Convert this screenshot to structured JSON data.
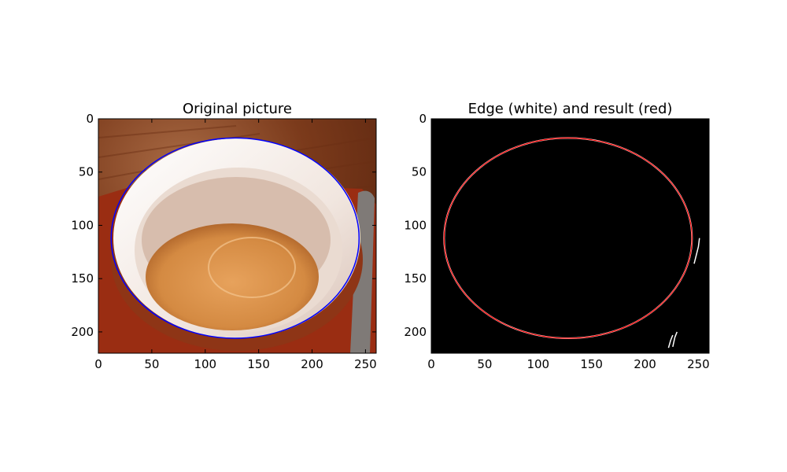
{
  "chart_data": [
    {
      "type": "image",
      "title": "Original picture",
      "xlabel": "",
      "ylabel": "",
      "xlim": [
        0,
        260
      ],
      "ylim": [
        220,
        0
      ],
      "xticks": [
        0,
        50,
        100,
        150,
        200,
        250
      ],
      "yticks": [
        0,
        50,
        100,
        150,
        200
      ],
      "overlay_ellipse": {
        "cx": 128,
        "cy": 112,
        "rx": 116,
        "ry": 94,
        "color": "#0000ff"
      },
      "colors": {
        "bg_wood": "#7b3a1b",
        "cup_white": "#f4ece6",
        "coffee": "#d98b45",
        "saucer": "#9a2d12"
      }
    },
    {
      "type": "image",
      "title": "Edge (white) and result (red)",
      "xlabel": "",
      "ylabel": "",
      "xlim": [
        0,
        260
      ],
      "ylim": [
        220,
        0
      ],
      "xticks": [
        0,
        50,
        100,
        150,
        200,
        250
      ],
      "yticks": [
        0,
        50,
        100,
        150,
        200
      ],
      "overlay_ellipse": {
        "cx": 128,
        "cy": 112,
        "rx": 116,
        "ry": 94,
        "color": "#ff0000"
      },
      "edge_fragments": [
        [
          [
            226,
            214
          ],
          [
            228,
            205
          ],
          [
            230,
            200
          ]
        ],
        [
          [
            222,
            215
          ],
          [
            224,
            208
          ],
          [
            226,
            203
          ]
        ],
        [
          [
            246,
            136
          ],
          [
            248,
            128
          ],
          [
            250,
            120
          ],
          [
            251,
            112
          ]
        ]
      ],
      "colors": {
        "background": "#000000",
        "edge": "#ffffff"
      }
    }
  ]
}
